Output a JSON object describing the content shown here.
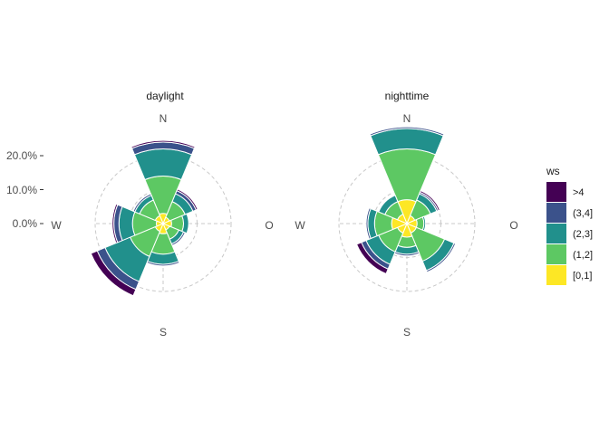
{
  "chart_data": [
    {
      "type": "windrose",
      "panel": "daylight",
      "directions": [
        "N",
        "NE",
        "E",
        "SE",
        "S",
        "SW",
        "W",
        "NW"
      ],
      "series": [
        {
          "name": "[0,1]",
          "values": [
            3.0,
            2.0,
            2.5,
            2.0,
            3.0,
            2.5,
            2.0,
            2.5
          ]
        },
        {
          "name": "(1,2]",
          "values": [
            11.0,
            5.0,
            3.5,
            3.0,
            6.0,
            8.0,
            7.0,
            5.0
          ]
        },
        {
          "name": "(2,3]",
          "values": [
            8.0,
            2.5,
            1.5,
            1.5,
            3.0,
            8.0,
            4.0,
            1.5
          ]
        },
        {
          "name": "(3,4]",
          "values": [
            2.0,
            1.0,
            0.0,
            0.5,
            0.5,
            2.5,
            1.5,
            0.5
          ]
        },
        {
          "name": ">4",
          "values": [
            0.5,
            0.5,
            0.0,
            0.0,
            0.0,
            2.0,
            0.5,
            0.0
          ]
        }
      ],
      "title": "daylight",
      "axis_labels": [
        "N",
        "O",
        "S",
        "W"
      ],
      "radial_ticks": [
        "0.0%",
        "10.0%",
        "20.0%"
      ]
    },
    {
      "type": "windrose",
      "panel": "nighttime",
      "directions": [
        "N",
        "NE",
        "E",
        "SE",
        "S",
        "SW",
        "W",
        "NW"
      ],
      "series": [
        {
          "name": "[0,1]",
          "values": [
            7.0,
            2.5,
            3.0,
            3.0,
            4.0,
            3.0,
            4.5,
            3.0
          ]
        },
        {
          "name": "(1,2]",
          "values": [
            15.0,
            5.0,
            2.0,
            9.0,
            3.0,
            6.0,
            5.0,
            4.0
          ]
        },
        {
          "name": "(2,3]",
          "values": [
            6.0,
            2.0,
            0.5,
            3.0,
            2.0,
            4.0,
            2.0,
            2.0
          ]
        },
        {
          "name": "(3,4]",
          "values": [
            0.5,
            0.5,
            0.0,
            0.5,
            0.5,
            1.5,
            0.5,
            0.0
          ]
        },
        {
          "name": ">4",
          "values": [
            0.0,
            0.5,
            0.0,
            0.0,
            0.0,
            1.5,
            0.0,
            0.0
          ]
        }
      ],
      "title": "nighttime",
      "axis_labels": [
        "N",
        "O",
        "S",
        "W"
      ]
    }
  ],
  "legend": {
    "title": "ws",
    "items": [
      {
        "label": ">4",
        "color": "#440154"
      },
      {
        "label": "(3,4]",
        "color": "#3b528b"
      },
      {
        "label": "(2,3]",
        "color": "#21908c"
      },
      {
        "label": "(1,2]",
        "color": "#5dc863"
      },
      {
        "label": "[0,1]",
        "color": "#fde725"
      }
    ]
  },
  "colors": {
    "[0,1]": "#fde725",
    "(1,2]": "#5dc863",
    "(2,3]": "#21908c",
    "(3,4]": "#3b528b",
    ">4": "#440154"
  }
}
